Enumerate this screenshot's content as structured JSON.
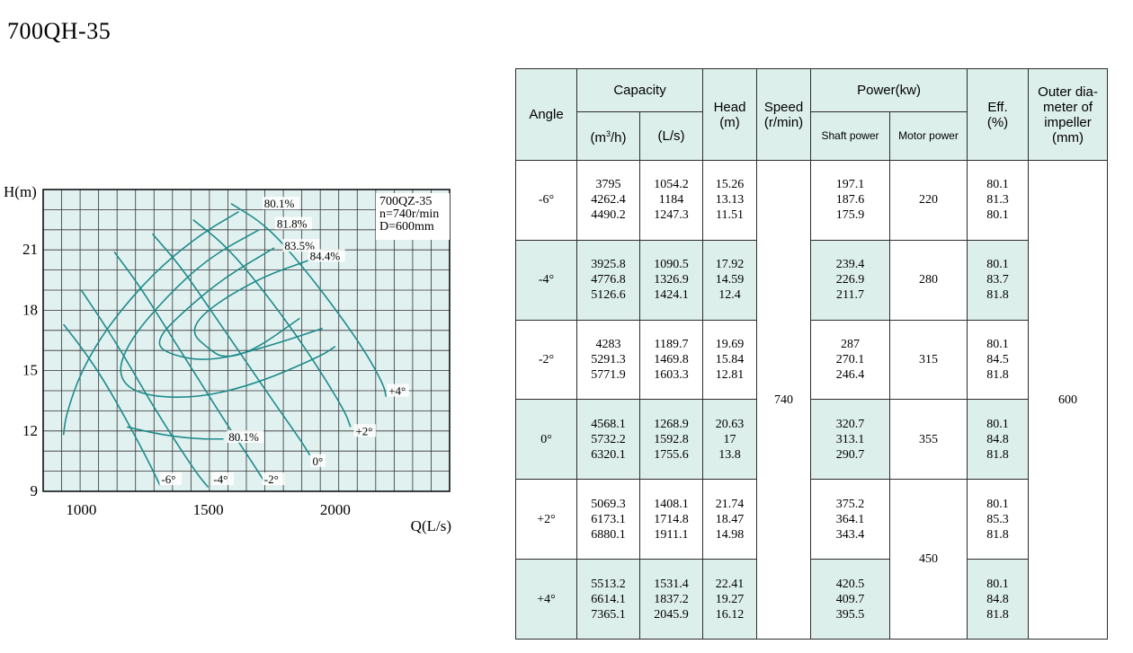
{
  "title": "700QH-35",
  "chart_data": {
    "type": "line",
    "xlabel": "Q(L/s)",
    "ylabel": "H(m)",
    "xlim": [
      850,
      2450
    ],
    "ylim": [
      9,
      24
    ],
    "x_ticks": [
      1000,
      1500,
      2000
    ],
    "y_ticks": [
      9,
      12,
      15,
      18,
      21
    ],
    "grid": true,
    "annotation_lines": [
      "700QZ-35",
      "n=740r/min",
      "D=600mm"
    ],
    "series": [
      {
        "name": "-6°",
        "label": "-6°",
        "label_at": [
          1315,
          9.4
        ],
        "points": [
          [
            930,
            17.3
          ],
          [
            1010,
            16.0
          ],
          [
            1090,
            14.5
          ],
          [
            1180,
            12.5
          ],
          [
            1260,
            10.6
          ],
          [
            1310,
            9.3
          ]
        ]
      },
      {
        "name": "-4°",
        "label": "-4°",
        "label_at": [
          1520,
          9.4
        ],
        "points": [
          [
            1000,
            19.0
          ],
          [
            1080,
            17.5
          ],
          [
            1170,
            15.7
          ],
          [
            1270,
            13.5
          ],
          [
            1380,
            11.3
          ],
          [
            1460,
            9.8
          ],
          [
            1500,
            9.2
          ]
        ]
      },
      {
        "name": "-2°",
        "label": "-2°",
        "label_at": [
          1720,
          9.4
        ],
        "points": [
          [
            1130,
            20.9
          ],
          [
            1230,
            19.2
          ],
          [
            1340,
            17.0
          ],
          [
            1460,
            14.6
          ],
          [
            1580,
            12.2
          ],
          [
            1680,
            10.3
          ],
          [
            1720,
            9.5
          ]
        ]
      },
      {
        "name": "0°",
        "label": "0°",
        "label_at": [
          1910,
          10.3
        ],
        "points": [
          [
            1280,
            21.8
          ],
          [
            1390,
            20.2
          ],
          [
            1510,
            18.0
          ],
          [
            1640,
            15.6
          ],
          [
            1760,
            13.4
          ],
          [
            1860,
            11.6
          ],
          [
            1900,
            10.8
          ]
        ]
      },
      {
        "name": "+2°",
        "label": "+2°",
        "label_at": [
          2080,
          11.8
        ],
        "points": [
          [
            1440,
            22.5
          ],
          [
            1570,
            21.2
          ],
          [
            1710,
            19.1
          ],
          [
            1850,
            16.7
          ],
          [
            1960,
            14.6
          ],
          [
            2040,
            12.9
          ],
          [
            2060,
            12.2
          ]
        ]
      },
      {
        "name": "+4°",
        "label": "+4°",
        "label_at": [
          2210,
          13.8
        ],
        "points": [
          [
            1590,
            23.3
          ],
          [
            1730,
            22.2
          ],
          [
            1870,
            20.2
          ],
          [
            2010,
            17.9
          ],
          [
            2120,
            15.9
          ],
          [
            2190,
            14.3
          ],
          [
            2200,
            13.7
          ]
        ]
      },
      {
        "name": "80.1%",
        "label": "80.1%",
        "label_at": [
          1720,
          23.1
        ],
        "points": [
          [
            1620,
            22.9
          ],
          [
            1460,
            21.7
          ],
          [
            1280,
            19.8
          ],
          [
            1110,
            17.3
          ],
          [
            1000,
            15.0
          ],
          [
            940,
            12.8
          ],
          [
            930,
            11.8
          ]
        ]
      },
      {
        "name": "81.8%",
        "label": "81.8%",
        "label_at": [
          1770,
          22.1
        ],
        "points": [
          [
            1700,
            22.0
          ],
          [
            1500,
            20.6
          ],
          [
            1330,
            18.6
          ],
          [
            1190,
            16.5
          ],
          [
            1140,
            14.8
          ],
          [
            1220,
            13.8
          ],
          [
            1440,
            13.6
          ],
          [
            1680,
            14.3
          ],
          [
            1940,
            15.7
          ],
          [
            2000,
            16.2
          ]
        ]
      },
      {
        "name": "83.5%",
        "label": "83.5%",
        "label_at": [
          1800,
          21.0
        ],
        "points": [
          [
            1760,
            21.1
          ],
          [
            1560,
            19.6
          ],
          [
            1390,
            17.8
          ],
          [
            1300,
            16.6
          ],
          [
            1320,
            15.9
          ],
          [
            1500,
            15.4
          ],
          [
            1760,
            16.3
          ],
          [
            1950,
            17.1
          ]
        ]
      },
      {
        "name": "84.4%",
        "label": "84.4%",
        "label_at": [
          1900,
          20.5
        ],
        "points": [
          [
            1900,
            20.5
          ],
          [
            1700,
            19.6
          ],
          [
            1490,
            18.0
          ],
          [
            1430,
            16.9
          ],
          [
            1500,
            16.1
          ],
          [
            1560,
            15.6
          ],
          [
            1680,
            16.0
          ],
          [
            1860,
            17.6
          ]
        ]
      },
      {
        "name": "80.1% (lower)",
        "label": "80.1%",
        "label_at": [
          1580,
          11.5
        ],
        "points": [
          [
            1180,
            12.2
          ],
          [
            1320,
            11.8
          ],
          [
            1460,
            11.6
          ],
          [
            1560,
            11.6
          ]
        ]
      }
    ]
  },
  "table": {
    "headers": {
      "angle": "Angle",
      "capacity": "Capacity",
      "cap_m3h": "(m",
      "cap_m3h_sup": "3",
      "cap_m3h_end": "/h)",
      "cap_ls": "(L/s)",
      "head": "Head",
      "head_unit": "(m)",
      "speed": "Speed",
      "speed_unit": "(r/min)",
      "power": "Power(kw)",
      "shaft": "Shaft power",
      "motor": "Motor power",
      "eff": "Eff.",
      "eff_unit": "(%)",
      "diam_1": "Outer dia-",
      "diam_2": "meter of",
      "diam_3": "impeller",
      "diam_4": "(mm)"
    },
    "speed": "740",
    "diameter": "600",
    "motor_merged_bottom": "450",
    "rows": [
      {
        "angle": "-6°",
        "cap_m3h": [
          "3795",
          "4262.4",
          "4490.2"
        ],
        "cap_ls": [
          "1054.2",
          "1184",
          "1247.3"
        ],
        "head": [
          "15.26",
          "13.13",
          "11.51"
        ],
        "shaft": [
          "197.1",
          "187.6",
          "175.9"
        ],
        "motor": "220",
        "eff": [
          "80.1",
          "81.3",
          "80.1"
        ]
      },
      {
        "angle": "-4°",
        "cap_m3h": [
          "3925.8",
          "4776.8",
          "5126.6"
        ],
        "cap_ls": [
          "1090.5",
          "1326.9",
          "1424.1"
        ],
        "head": [
          "17.92",
          "14.59",
          "12.4"
        ],
        "shaft": [
          "239.4",
          "226.9",
          "211.7"
        ],
        "motor": "280",
        "eff": [
          "80.1",
          "83.7",
          "81.8"
        ]
      },
      {
        "angle": "-2°",
        "cap_m3h": [
          "4283",
          "5291.3",
          "5771.9"
        ],
        "cap_ls": [
          "1189.7",
          "1469.8",
          "1603.3"
        ],
        "head": [
          "19.69",
          "15.84",
          "12.81"
        ],
        "shaft": [
          "287",
          "270.1",
          "246.4"
        ],
        "motor": "315",
        "eff": [
          "80.1",
          "84.5",
          "81.8"
        ]
      },
      {
        "angle": "0°",
        "cap_m3h": [
          "4568.1",
          "5732.2",
          "6320.1"
        ],
        "cap_ls": [
          "1268.9",
          "1592.8",
          "1755.6"
        ],
        "head": [
          "20.63",
          "17",
          "13.8"
        ],
        "shaft": [
          "320.7",
          "313.1",
          "290.7"
        ],
        "motor": "355",
        "eff": [
          "80.1",
          "84.8",
          "81.8"
        ]
      },
      {
        "angle": "+2°",
        "cap_m3h": [
          "5069.3",
          "6173.1",
          "6880.1"
        ],
        "cap_ls": [
          "1408.1",
          "1714.8",
          "1911.1"
        ],
        "head": [
          "21.74",
          "18.47",
          "14.98"
        ],
        "shaft": [
          "375.2",
          "364.1",
          "343.4"
        ],
        "motor": "",
        "eff": [
          "80.1",
          "85.3",
          "81.8"
        ]
      },
      {
        "angle": "+4°",
        "cap_m3h": [
          "5513.2",
          "6614.1",
          "7365.1"
        ],
        "cap_ls": [
          "1531.4",
          "1837.2",
          "2045.9"
        ],
        "head": [
          "22.41",
          "19.27",
          "16.12"
        ],
        "shaft": [
          "420.5",
          "409.7",
          "395.5"
        ],
        "motor": "",
        "eff": [
          "80.1",
          "84.8",
          "81.8"
        ]
      }
    ]
  },
  "colors": {
    "curve": "#1e8b8b",
    "chart_bg": "#e1f1f0",
    "header_bg": "#dcefeb"
  }
}
